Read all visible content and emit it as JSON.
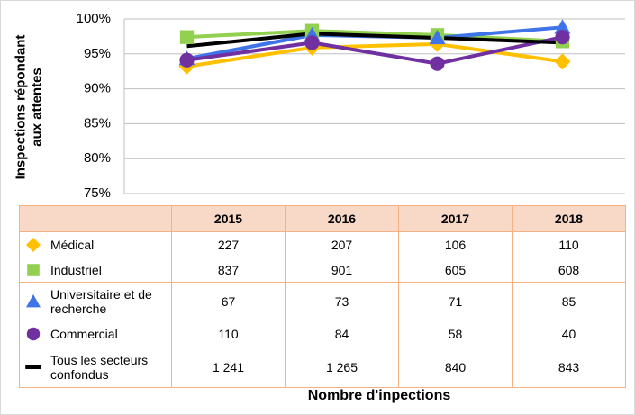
{
  "chart_data": {
    "type": "line",
    "y_label": "Inspections répondant aux attentes",
    "x_label": "Nombre d'inpections",
    "categories": [
      "2015",
      "2016",
      "2017",
      "2018"
    ],
    "ylim": [
      75,
      100
    ],
    "yticks": [
      {
        "value": 75,
        "label": "75%"
      },
      {
        "value": 80,
        "label": "80%"
      },
      {
        "value": 85,
        "label": "85%"
      },
      {
        "value": 90,
        "label": "90%"
      },
      {
        "value": 95,
        "label": "95%"
      },
      {
        "value": 100,
        "label": "100%"
      }
    ],
    "grid": true,
    "series": [
      {
        "name": "Médical",
        "color": "#ffc000",
        "marker": "diamond",
        "values": [
          93.2,
          95.9,
          96.4,
          93.9
        ]
      },
      {
        "name": "Industriel",
        "color": "#92d050",
        "marker": "square",
        "values": [
          97.4,
          98.3,
          97.7,
          96.8
        ]
      },
      {
        "name": "Universitaire et de recherche",
        "color": "#3f73e8",
        "marker": "triangle",
        "values": [
          94.3,
          97.7,
          97.3,
          98.8
        ]
      },
      {
        "name": "Commercial",
        "color": "#7030a0",
        "marker": "circle",
        "values": [
          94.1,
          96.6,
          93.6,
          97.4
        ]
      },
      {
        "name": "Tous les secteurs confondus",
        "color": "#000000",
        "marker": "none",
        "values": [
          96.1,
          97.9,
          97.3,
          96.6
        ]
      }
    ],
    "table": {
      "rows": [
        [
          "227",
          "207",
          "106",
          "110"
        ],
        [
          "837",
          "901",
          "605",
          "608"
        ],
        [
          "67",
          "73",
          "71",
          "85"
        ],
        [
          "110",
          "84",
          "58",
          "40"
        ],
        [
          "1 241",
          "1 265",
          "840",
          "843"
        ]
      ]
    }
  }
}
